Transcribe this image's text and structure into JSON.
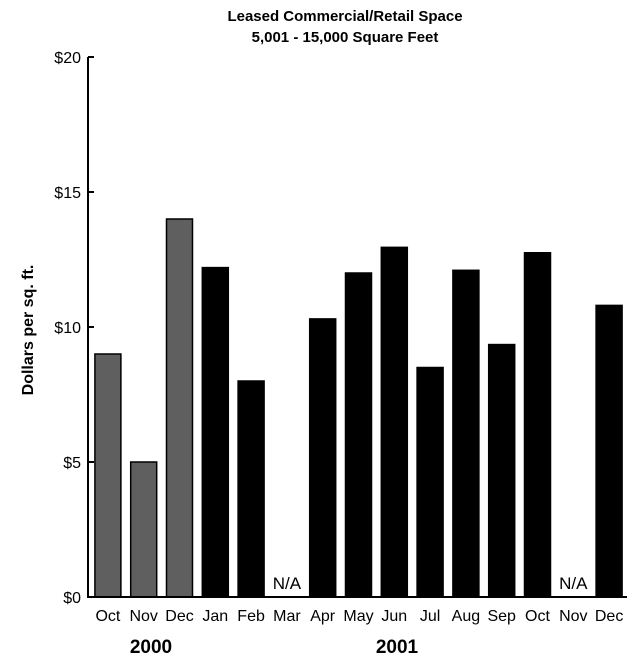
{
  "chart_data": {
    "type": "bar",
    "title": "Leased Commercial/Retail Space",
    "subtitle": "5,001 - 15,000 Square Feet",
    "ylabel": "Dollars per sq. ft.",
    "xlabel": "",
    "ylim": [
      0,
      20
    ],
    "yticks": [
      0,
      5,
      10,
      15,
      20
    ],
    "ytick_labels": [
      "$0",
      "$5",
      "$10",
      "$15",
      "$20"
    ],
    "categories": [
      "Oct",
      "Nov",
      "Dec",
      "Jan",
      "Feb",
      "Mar",
      "Apr",
      "May",
      "Jun",
      "Jul",
      "Aug",
      "Sep",
      "Oct",
      "Nov",
      "Dec"
    ],
    "values": [
      9.0,
      5.0,
      14.0,
      12.2,
      8.0,
      null,
      10.3,
      12.0,
      12.95,
      8.5,
      12.1,
      9.35,
      12.75,
      null,
      10.8
    ],
    "missing_label": "N/A",
    "year_groups": [
      {
        "label": "2000",
        "start": 0,
        "end": 2
      },
      {
        "label": "2001",
        "start": 3,
        "end": 14
      }
    ],
    "colors": {
      "2000": "#5f5f5f",
      "2001": "#000000",
      "axis": "#000000"
    },
    "grid": false,
    "legend": "none"
  }
}
